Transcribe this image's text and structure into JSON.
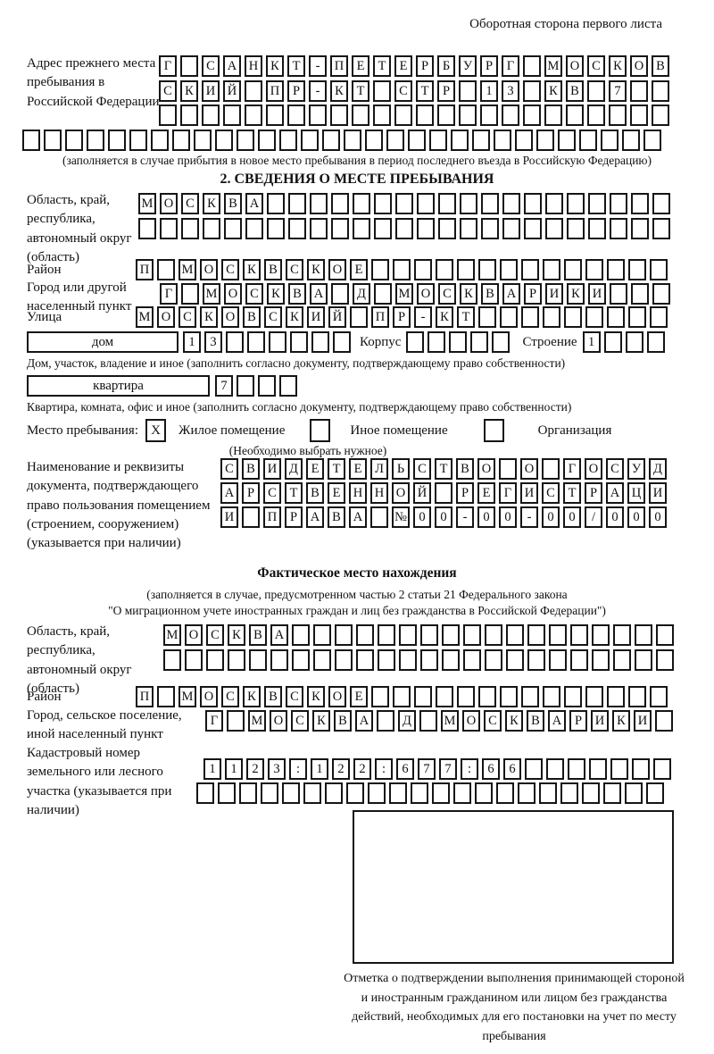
{
  "page": {
    "header_note": "Оборотная сторона первого листа"
  },
  "prev_address": {
    "label": "Адрес прежнего места пребывания в Российской Федерации",
    "rows": [
      "Г САНКТ-ПЕТЕРБУРГ МОСКОВ",
      "СКИЙ ПР-КТ СТР 13 КВ 7  ",
      "                        ",
      "                              "
    ],
    "note": "(заполняется в случае прибытия в новое место пребывания в период последнего въезда в Российскую Федерацию)"
  },
  "section2": {
    "title": "2. СВЕДЕНИЯ О МЕСТЕ ПРЕБЫВАНИЯ",
    "region": {
      "label": "Область, край, республика, автономный округ (область)",
      "rows": [
        "МОСКВА                   ",
        "                         "
      ]
    },
    "district": {
      "label": "Район",
      "row": "П МОСКВСКОЕ              "
    },
    "city": {
      "label": "Город или другой населенный пункт",
      "row": "Г МОСКВА Д МОСКВАРИКИ   "
    },
    "street": {
      "label": "Улица",
      "row": "МОСКОВСКИЙ ПР-КТ         "
    },
    "house": {
      "label": "дом",
      "cells": "13      ",
      "korpus_label": "Корпус",
      "korpus_cells": "     ",
      "stroenie_label": "Строение",
      "stroenie_cells": "1   "
    },
    "house_note": "Дом, участок, владение и иное (заполнить согласно документу, подтверждающему право собственности)",
    "apartment": {
      "label": "квартира",
      "cells": "7   "
    },
    "apartment_note": "Квартира, комната, офис и иное (заполнить согласно документу, подтверждающему право собственности)",
    "stay_type": {
      "label": "Место пребывания:",
      "options": [
        {
          "label": "Жилое помещение",
          "mark": "X"
        },
        {
          "label": "Иное помещение",
          "mark": ""
        },
        {
          "label": "Организация",
          "mark": ""
        }
      ],
      "note": "(Необходимо выбрать нужное)"
    },
    "document": {
      "label": "Наименование и реквизиты документа, подтверждающего право пользования помещением (строением, сооружением) (указывается при наличии)",
      "rows": [
        "СВИДЕТЕЛЬСТВО О ГОСУД",
        "АРСТВЕННОЙ РЕГИСТРАЦИ",
        "И ПРАВА №00-00-00/000"
      ]
    }
  },
  "actual_location": {
    "title": "Фактическое место нахождения",
    "note1": "(заполняется в случае, предусмотренном частью 2 статьи 21 Федерального закона",
    "note2": "\"О миграционном учете иностранных граждан и лиц без гражданства в Российской Федерации\")",
    "region": {
      "label": "Область, край, республика, автономный округ (область)",
      "rows": [
        "МОСКВА                  ",
        "                        "
      ]
    },
    "district": {
      "label": "Район",
      "row": "П МОСКВСКОЕ              "
    },
    "city": {
      "label": "Город, сельское поселение, иной населенный пункт",
      "row": "Г МОСКВА Д МОСКВАРИКИ "
    },
    "cadastral": {
      "label": "Кадастровый номер земельного или лесного участка (указывается при наличии)",
      "rows": [
        "1123:122:677:66       ",
        "                      "
      ]
    },
    "stamp_note": "Отметка о подтверждении выполнения принимающей стороной и иностранным гражданином или лицом без гражданства действий, необходимых для его постановки на учет по месту пребывания"
  }
}
